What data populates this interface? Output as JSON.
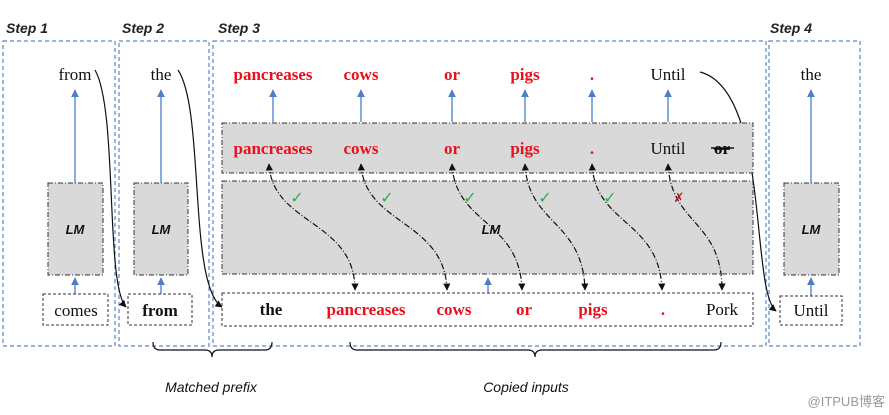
{
  "steps": {
    "step1": "Step 1",
    "step2": "Step 2",
    "step3": "Step 3",
    "step4": "Step 4"
  },
  "step1": {
    "output": "from",
    "model": "LM",
    "input": "comes"
  },
  "step2": {
    "output": "the",
    "model": "LM",
    "input": "from"
  },
  "step3": {
    "model": "LM",
    "outputs": [
      "pancreases",
      "cows",
      "or",
      "pigs",
      ".",
      "Until"
    ],
    "predictions": [
      "pancreases",
      "cows",
      "or",
      "pigs",
      ".",
      "Until",
      "or"
    ],
    "inputs": [
      "the",
      "pancreases",
      "cows",
      "or",
      "pigs",
      ".",
      "Pork"
    ],
    "checks": [
      "✓",
      "✓",
      "✓",
      "✓",
      "✓",
      "✗"
    ]
  },
  "step4": {
    "output": "the",
    "model": "LM",
    "input": "Until"
  },
  "braces": {
    "matched_prefix": "Matched prefix",
    "copied_inputs": "Copied inputs"
  },
  "watermark": "@ITPUB博客",
  "colors": {
    "copied_text": "#e8101a",
    "check": "#2bb34a",
    "cross": "#c0161e",
    "box_border": "#5b87c5",
    "arrow": "#4a7fc8",
    "lm_fill": "#d9d9d9"
  }
}
